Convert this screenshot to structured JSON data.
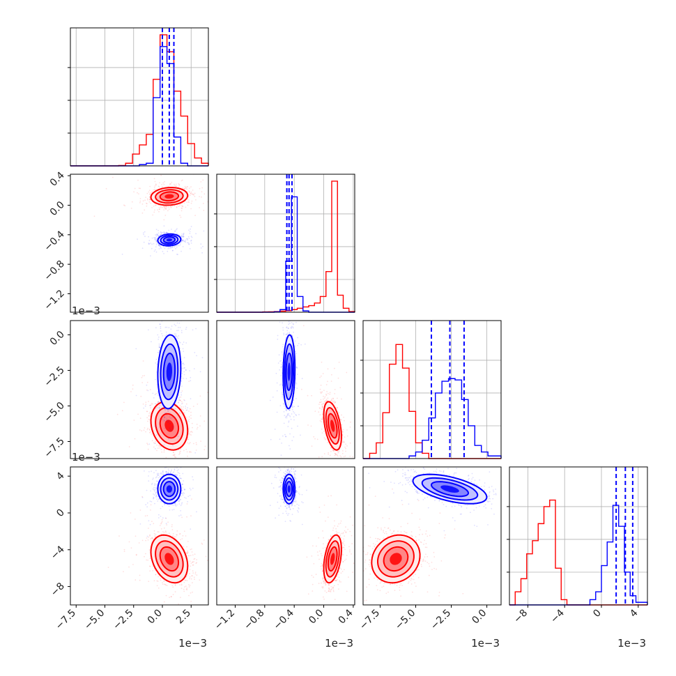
{
  "chart_data": {
    "type": "corner",
    "parameters": [
      {
        "range": [
          -8,
          4
        ],
        "ticks": [
          -7.5,
          -5.0,
          -2.5,
          0.0,
          2.5
        ],
        "tick_labels": [
          "−7.5",
          "−5.0",
          "−2.5",
          "0.0",
          "2.5"
        ],
        "offset": "1e−3"
      },
      {
        "range": [
          -1.45,
          0.42
        ],
        "ticks": [
          -1.2,
          -0.8,
          -0.4,
          0.0,
          0.4
        ],
        "tick_labels": [
          "−1.2",
          "−0.8",
          "−0.4",
          "0.0",
          "0.4"
        ],
        "offset": "1e−3"
      },
      {
        "range": [
          -8.7,
          1.0
        ],
        "ticks": [
          -7.5,
          -5.0,
          -2.5,
          0.0
        ],
        "tick_labels": [
          "−7.5",
          "−5.0",
          "−2.5",
          "0.0"
        ],
        "offset": "1e−3"
      },
      {
        "range": [
          -10,
          5
        ],
        "ticks": [
          -8,
          -4,
          0,
          4
        ],
        "tick_labels": [
          "−8",
          "−4",
          "0",
          "4"
        ],
        "offset": "1e−3"
      }
    ],
    "series": [
      {
        "color": "#ff0000",
        "hist_bins": [
          {
            "edges": [
              -8,
              4
            ],
            "counts": [
              0,
              0,
              0,
              0,
              0,
              0,
              0,
              0.003,
              0.02,
              0.09,
              0.16,
              0.24,
              0.66,
              1.0,
              0.87,
              0.57,
              0.38,
              0.17,
              0.06,
              0.02
            ]
          },
          {
            "edges": [
              -1.45,
              0.42
            ],
            "counts": [
              0,
              0,
              0,
              0,
              0,
              0,
              0,
              0,
              0.002,
              0.003,
              0.005,
              0.008,
              0.012,
              0.02,
              0.03,
              0.04,
              0.05,
              0.07,
              0.12,
              0.31,
              1.0,
              0.13,
              0.03,
              0.005
            ]
          },
          {
            "edges": [
              -8.7,
              1.0
            ],
            "counts": [
              0,
              0.04,
              0.12,
              0.35,
              0.72,
              0.87,
              0.69,
              0.36,
              0.12,
              0.04,
              0,
              0,
              0,
              0,
              0,
              0,
              0,
              0,
              0,
              0,
              0
            ]
          },
          {
            "edges": [
              -10,
              5
            ],
            "counts": [
              0,
              0.1,
              0.2,
              0.39,
              0.49,
              0.62,
              0.75,
              0.8,
              0.28,
              0.04,
              0,
              0,
              0,
              0,
              0,
              0,
              0,
              0,
              0,
              0,
              0,
              0,
              0,
              0
            ]
          }
        ],
        "means": [
          0.6,
          0.12,
          -6.4,
          -5.0
        ],
        "sigmas": [
          0.8,
          0.06,
          0.85,
          1.3
        ],
        "correlations": [
          [
            0,
            1,
            0.1
          ],
          [
            0,
            2,
            -0.2
          ],
          [
            0,
            3,
            -0.3
          ],
          [
            1,
            2,
            -0.45
          ],
          [
            1,
            3,
            0.4
          ],
          [
            2,
            3,
            0.15
          ]
        ]
      },
      {
        "color": "#0000ff",
        "hist_bins": [
          {
            "edges": [
              -8,
              4
            ],
            "counts": [
              0,
              0,
              0,
              0,
              0,
              0,
              0,
              0,
              0,
              0,
              0.01,
              0.02,
              0.52,
              0.91,
              0.78,
              0.22,
              0.02,
              0,
              0,
              0
            ]
          },
          {
            "edges": [
              -1.45,
              0.42
            ],
            "counts": [
              0,
              0,
              0,
              0,
              0,
              0,
              0,
              0,
              0,
              0,
              0.003,
              0.02,
              0.39,
              0.88,
              0.12,
              0.01,
              0,
              0,
              0,
              0,
              0,
              0,
              0,
              0
            ]
          },
          {
            "edges": [
              -8.7,
              1.0
            ],
            "counts": [
              0,
              0,
              0,
              0,
              0,
              0,
              0,
              0.02,
              0.05,
              0.14,
              0.31,
              0.5,
              0.59,
              0.61,
              0.6,
              0.45,
              0.25,
              0.1,
              0.05,
              0.02,
              0.02
            ]
          },
          {
            "edges": [
              -10,
              5
            ],
            "counts": [
              0,
              0,
              0,
              0,
              0,
              0,
              0,
              0,
              0,
              0,
              0,
              0,
              0,
              0,
              0.04,
              0.1,
              0.3,
              0.48,
              0.76,
              0.6,
              0.25,
              0.07,
              0.02,
              0.02
            ]
          }
        ],
        "means": [
          0.6,
          -0.47,
          -2.6,
          2.6
        ],
        "sigmas": [
          0.5,
          0.04,
          1.3,
          0.8
        ],
        "correlations": [
          [
            0,
            1,
            0.1
          ],
          [
            0,
            2,
            0.1
          ],
          [
            0,
            3,
            0.0
          ],
          [
            1,
            2,
            0.1
          ],
          [
            1,
            3,
            0.0
          ],
          [
            2,
            3,
            -0.55
          ]
        ],
        "quantile_lines": [
          [
            0.0,
            0.6,
            1.0
          ],
          [
            -0.5,
            -0.47,
            -0.43
          ],
          [
            -3.9,
            -2.6,
            -1.6
          ],
          [
            1.6,
            2.6,
            3.4
          ]
        ]
      }
    ],
    "grid": true,
    "legend": "none"
  }
}
